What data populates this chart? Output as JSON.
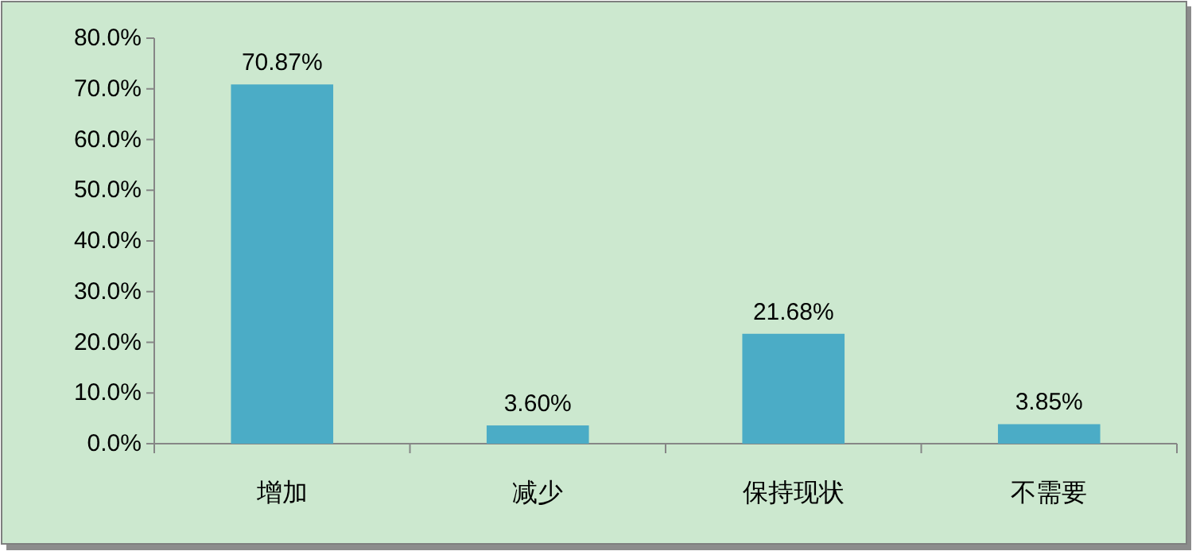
{
  "chart_data": {
    "type": "bar",
    "categories": [
      "增加",
      "减少",
      "保持现状",
      "不需要"
    ],
    "values": [
      70.87,
      3.6,
      21.68,
      3.85
    ],
    "color": "#4bacc6",
    "value_labels": [
      "70.87%",
      "3.60%",
      "21.68%",
      "3.85%"
    ],
    "ylim": [
      0,
      80
    ],
    "yticks": [
      {
        "value": 0,
        "label": "0.0%"
      },
      {
        "value": 10,
        "label": "10.0%"
      },
      {
        "value": 20,
        "label": "20.0%"
      },
      {
        "value": 30,
        "label": "30.0%"
      },
      {
        "value": 40,
        "label": "40.0%"
      },
      {
        "value": 50,
        "label": "50.0%"
      },
      {
        "value": 60,
        "label": "60.0%"
      },
      {
        "value": 70,
        "label": "70.0%"
      },
      {
        "value": 80,
        "label": "80.0%"
      }
    ],
    "grid": false
  }
}
